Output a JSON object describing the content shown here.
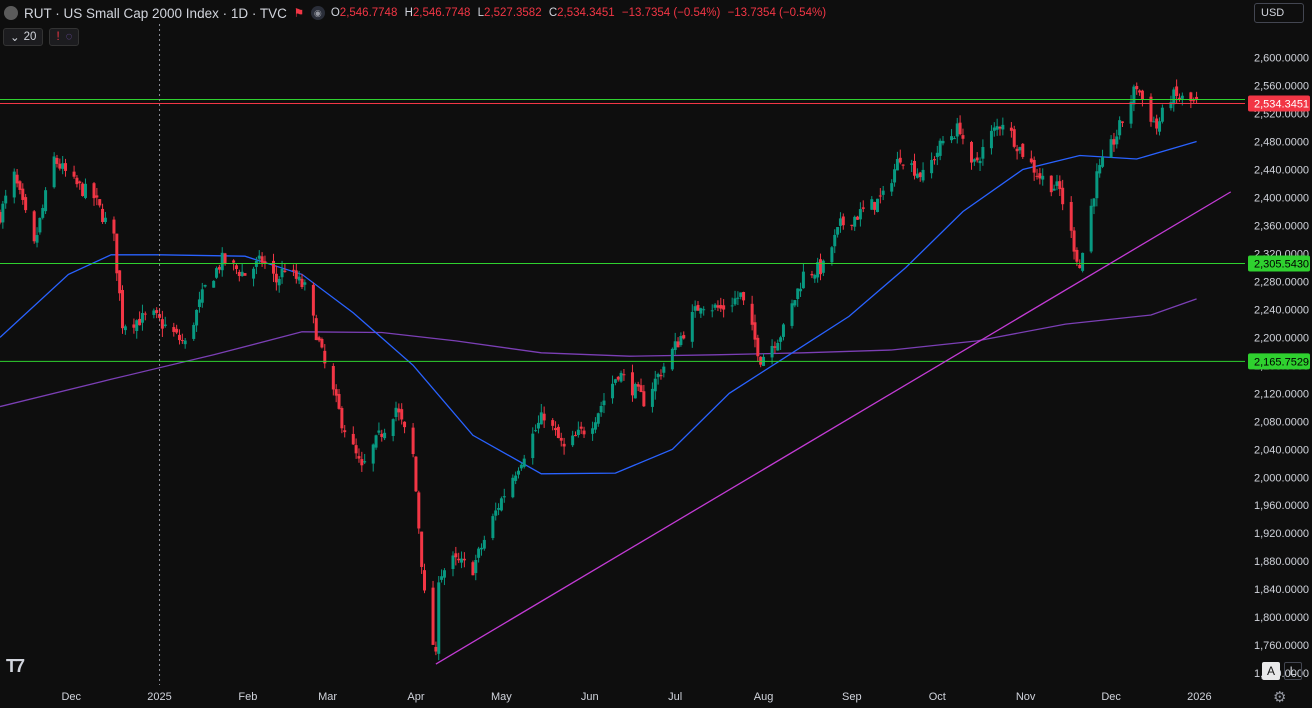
{
  "header": {
    "symbol_title": "RUT · US Small Cap 2000 Index · 1D · TVC",
    "ohlc": {
      "o_label": "O",
      "o": "2,546.7748",
      "h_label": "H",
      "h": "2,546.7748",
      "l_label": "L",
      "l": "2,527.3582",
      "c_label": "C",
      "c": "2,534.3451",
      "change": "−13.7354 (−0.54%)",
      "change2": "−13.7354 (−0.54%)"
    },
    "currency": "USD"
  },
  "indicators": {
    "length": "20"
  },
  "colors": {
    "up": "#089981",
    "down": "#f23645",
    "ma_blue": "#2962ff",
    "ma_purple": "#7b3fb5",
    "trendline": "#c23bd4",
    "hline": "#2fd12f"
  },
  "chart_data": {
    "type": "candlestick",
    "title": "RUT · US Small Cap 2000 Index · 1D · TVC",
    "y_ticks": [
      "2,600.0000",
      "2,560.0000",
      "2,520.0000",
      "2,480.0000",
      "2,440.0000",
      "2,400.0000",
      "2,360.0000",
      "2,320.0000",
      "2,280.0000",
      "2,240.0000",
      "2,200.0000",
      "2,160.0000",
      "2,120.0000",
      "2,080.0000",
      "2,040.0000",
      "2,000.0000",
      "1,960.0000",
      "1,920.0000",
      "1,880.0000",
      "1,840.0000",
      "1,800.0000",
      "1,760.0000",
      "1,720.0000"
    ],
    "y_tick_values": [
      2600,
      2560,
      2520,
      2480,
      2440,
      2400,
      2360,
      2320,
      2280,
      2240,
      2200,
      2160,
      2120,
      2080,
      2040,
      2000,
      1960,
      1920,
      1880,
      1840,
      1800,
      1760,
      1720
    ],
    "x_ticks": [
      "Dec",
      "2025",
      "Feb",
      "Mar",
      "Apr",
      "May",
      "Jun",
      "Jul",
      "Aug",
      "Sep",
      "Oct",
      "Nov",
      "Dec",
      "2026"
    ],
    "x_tick_dates": [
      "2024-12-01",
      "2025-01-01",
      "2025-02-01",
      "2025-03-01",
      "2025-04-01",
      "2025-05-01",
      "2025-06-01",
      "2025-07-01",
      "2025-08-01",
      "2025-09-01",
      "2025-10-01",
      "2025-11-01",
      "2025-12-01",
      "2026-01-01"
    ],
    "xlim": [
      "2024-11-06",
      "2026-01-17"
    ],
    "ylim": [
      1703,
      2648
    ],
    "crosshair_date": "2025-01-01",
    "horizontal_lines": [
      {
        "value": 2534.3451,
        "label": "2,534.3451",
        "color": "#f23645"
      },
      {
        "value": 2540,
        "label": "",
        "color": "#2fd12f"
      },
      {
        "value": 2305.543,
        "label": "2,305.5430",
        "color": "#2fd12f"
      },
      {
        "value": 2165.7529,
        "label": "2,165.7529",
        "color": "#2fd12f"
      }
    ],
    "trendline": {
      "from": {
        "date": "2025-04-08",
        "value": 1733
      },
      "to": {
        "date": "2026-01-12",
        "value": 2408
      }
    },
    "anchors": [
      [
        "2024-11-06",
        2375
      ],
      [
        "2024-11-11",
        2430
      ],
      [
        "2024-11-18",
        2330
      ],
      [
        "2024-11-25",
        2455
      ],
      [
        "2024-12-02",
        2420
      ],
      [
        "2024-12-09",
        2400
      ],
      [
        "2024-12-16",
        2340
      ],
      [
        "2024-12-19",
        2220
      ],
      [
        "2024-12-30",
        2230
      ],
      [
        "2025-01-10",
        2190
      ],
      [
        "2025-01-17",
        2270
      ],
      [
        "2025-01-23",
        2310
      ],
      [
        "2025-01-31",
        2290
      ],
      [
        "2025-02-06",
        2310
      ],
      [
        "2025-02-11",
        2280
      ],
      [
        "2025-02-14",
        2300
      ],
      [
        "2025-02-21",
        2270
      ],
      [
        "2025-02-28",
        2160
      ],
      [
        "2025-03-06",
        2080
      ],
      [
        "2025-03-13",
        2010
      ],
      [
        "2025-03-18",
        2050
      ],
      [
        "2025-03-25",
        2100
      ],
      [
        "2025-03-31",
        2030
      ],
      [
        "2025-04-04",
        1830
      ],
      [
        "2025-04-08",
        1740
      ],
      [
        "2025-04-09",
        1860
      ],
      [
        "2025-04-14",
        1880
      ],
      [
        "2025-04-21",
        1870
      ],
      [
        "2025-04-30",
        1960
      ],
      [
        "2025-05-12",
        2060
      ],
      [
        "2025-05-16",
        2090
      ],
      [
        "2025-05-23",
        2040
      ],
      [
        "2025-06-02",
        2080
      ],
      [
        "2025-06-11",
        2150
      ],
      [
        "2025-06-20",
        2110
      ],
      [
        "2025-06-30",
        2180
      ],
      [
        "2025-07-10",
        2250
      ],
      [
        "2025-07-17",
        2240
      ],
      [
        "2025-07-24",
        2260
      ],
      [
        "2025-07-31",
        2170
      ],
      [
        "2025-08-08",
        2210
      ],
      [
        "2025-08-15",
        2290
      ],
      [
        "2025-08-22",
        2300
      ],
      [
        "2025-08-28",
        2360
      ],
      [
        "2025-09-05",
        2380
      ],
      [
        "2025-09-12",
        2400
      ],
      [
        "2025-09-18",
        2460
      ],
      [
        "2025-09-26",
        2430
      ],
      [
        "2025-10-03",
        2480
      ],
      [
        "2025-10-09",
        2500
      ],
      [
        "2025-10-13",
        2440
      ],
      [
        "2025-10-20",
        2490
      ],
      [
        "2025-10-24",
        2510
      ],
      [
        "2025-10-30",
        2470
      ],
      [
        "2025-11-06",
        2430
      ],
      [
        "2025-11-13",
        2410
      ],
      [
        "2025-11-20",
        2300
      ],
      [
        "2025-11-26",
        2430
      ],
      [
        "2025-12-03",
        2490
      ],
      [
        "2025-12-10",
        2560
      ],
      [
        "2025-12-12",
        2540
      ],
      [
        "2025-12-17",
        2500
      ],
      [
        "2025-12-22",
        2545
      ],
      [
        "2025-12-31",
        2534
      ]
    ],
    "ma_blue": [
      [
        "2024-11-06",
        2200
      ],
      [
        "2024-11-30",
        2290
      ],
      [
        "2024-12-15",
        2318
      ],
      [
        "2025-01-01",
        2318
      ],
      [
        "2025-01-31",
        2316
      ],
      [
        "2025-02-20",
        2290
      ],
      [
        "2025-03-10",
        2235
      ],
      [
        "2025-03-31",
        2160
      ],
      [
        "2025-04-21",
        2060
      ],
      [
        "2025-05-15",
        2005
      ],
      [
        "2025-06-10",
        2006
      ],
      [
        "2025-06-30",
        2040
      ],
      [
        "2025-07-20",
        2120
      ],
      [
        "2025-08-10",
        2175
      ],
      [
        "2025-08-31",
        2230
      ],
      [
        "2025-09-20",
        2300
      ],
      [
        "2025-10-10",
        2380
      ],
      [
        "2025-10-31",
        2440
      ],
      [
        "2025-11-20",
        2460
      ],
      [
        "2025-12-10",
        2455
      ],
      [
        "2025-12-31",
        2480
      ]
    ],
    "ma_purple": [
      [
        "2024-11-06",
        2101
      ],
      [
        "2024-12-15",
        2140
      ],
      [
        "2025-01-20",
        2175
      ],
      [
        "2025-02-20",
        2208
      ],
      [
        "2025-03-20",
        2207
      ],
      [
        "2025-04-15",
        2195
      ],
      [
        "2025-05-15",
        2178
      ],
      [
        "2025-06-15",
        2173
      ],
      [
        "2025-07-15",
        2175
      ],
      [
        "2025-08-15",
        2178
      ],
      [
        "2025-09-15",
        2182
      ],
      [
        "2025-10-15",
        2195
      ],
      [
        "2025-11-15",
        2219
      ],
      [
        "2025-12-15",
        2232
      ],
      [
        "2025-12-31",
        2255
      ]
    ]
  }
}
